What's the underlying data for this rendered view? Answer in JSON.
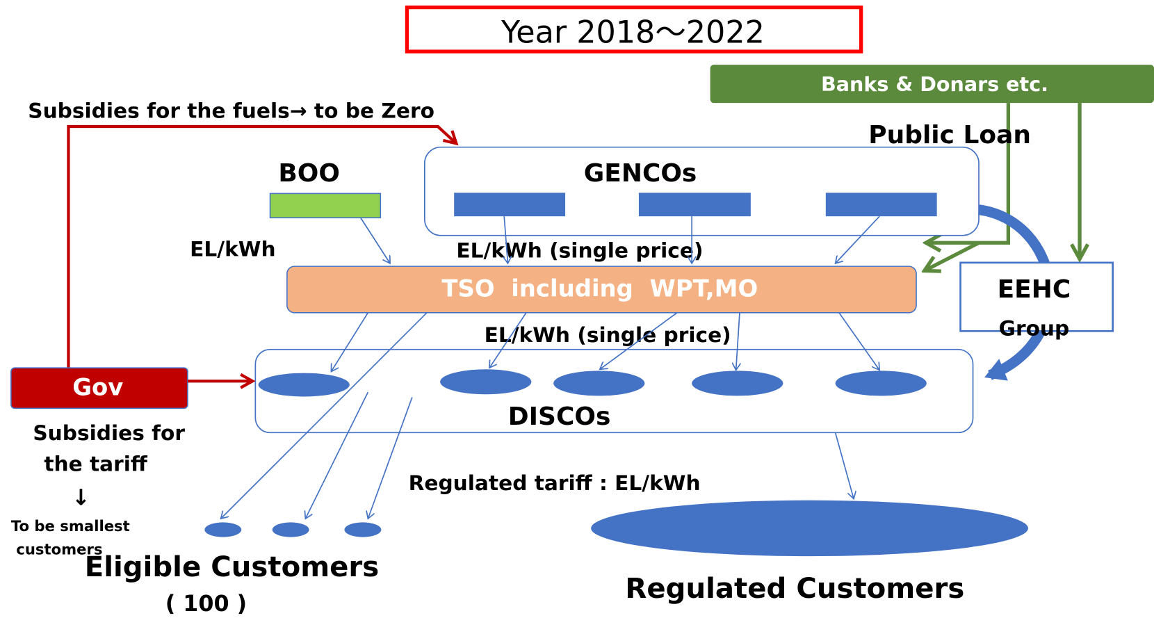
{
  "title": "Year 2018～2022",
  "banks": "Banks & Donars etc.",
  "fuel_subsidy": "Subsidies for the fuels→ to be Zero",
  "public_loan": "Public Loan",
  "boo": "BOO",
  "gencos": "GENCOs",
  "boo_price": "EL/kWh",
  "genco_price": "EL/kWh (single price)",
  "tso": "TSO  including  WPT,MO",
  "eehc": {
    "line1": "EEHC",
    "line2": "Group"
  },
  "tso_price": "EL/kWh (single price)",
  "gov": "Gov",
  "discos": "DISCOs",
  "tariff_subsidy": {
    "line1": "Subsidies for",
    "line2": "the tariff",
    "arrow": "↓",
    "line3": "To be smallest",
    "line4": "customers"
  },
  "eligible": {
    "label": "Eligible Customers",
    "count": "( 100 )"
  },
  "regulated_tariff": "Regulated tariff : EL/kWh",
  "regulated": "Regulated Customers"
}
